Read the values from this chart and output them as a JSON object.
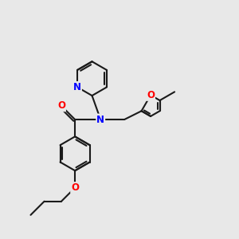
{
  "bg_color": "#e8e8e8",
  "bond_color": "#1a1a1a",
  "bond_width": 1.5,
  "atom_colors": {
    "N": "#0000ff",
    "O": "#ff0000",
    "C": "#1a1a1a"
  },
  "font_size_atom": 8.5
}
